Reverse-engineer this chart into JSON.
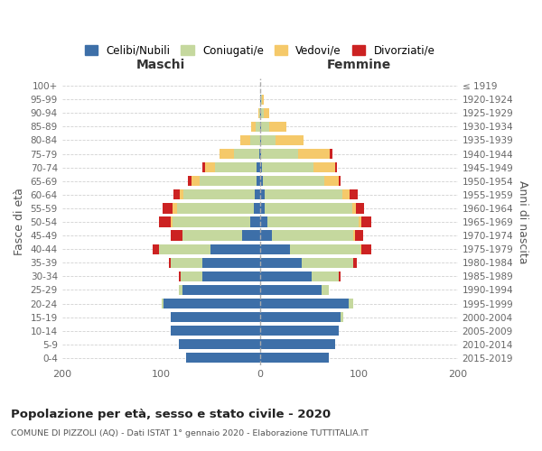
{
  "age_groups": [
    "0-4",
    "5-9",
    "10-14",
    "15-19",
    "20-24",
    "25-29",
    "30-34",
    "35-39",
    "40-44",
    "45-49",
    "50-54",
    "55-59",
    "60-64",
    "65-69",
    "70-74",
    "75-79",
    "80-84",
    "85-89",
    "90-94",
    "95-99",
    "100+"
  ],
  "birth_years": [
    "2015-2019",
    "2010-2014",
    "2005-2009",
    "2000-2004",
    "1995-1999",
    "1990-1994",
    "1985-1989",
    "1980-1984",
    "1975-1979",
    "1970-1974",
    "1965-1969",
    "1960-1964",
    "1955-1959",
    "1950-1954",
    "1945-1949",
    "1940-1944",
    "1935-1939",
    "1930-1934",
    "1925-1929",
    "1920-1924",
    "≤ 1919"
  ],
  "colors": {
    "celibi": "#3d6fa8",
    "coniugati": "#c5d89e",
    "vedovi": "#f5c96a",
    "divorziati": "#cc2222"
  },
  "maschi": {
    "celibi": [
      75,
      82,
      90,
      90,
      97,
      78,
      58,
      58,
      50,
      18,
      10,
      6,
      5,
      3,
      3,
      1,
      0,
      0,
      0,
      0,
      0
    ],
    "coniugati": [
      0,
      0,
      0,
      0,
      2,
      4,
      22,
      32,
      52,
      60,
      78,
      78,
      72,
      58,
      42,
      25,
      10,
      4,
      1,
      0,
      0
    ],
    "vedovi": [
      0,
      0,
      0,
      0,
      0,
      0,
      0,
      0,
      0,
      0,
      2,
      4,
      4,
      8,
      10,
      15,
      10,
      5,
      1,
      0,
      0
    ],
    "divorziati": [
      0,
      0,
      0,
      0,
      0,
      0,
      2,
      2,
      6,
      12,
      12,
      10,
      6,
      4,
      3,
      0,
      0,
      0,
      0,
      0,
      0
    ]
  },
  "femmine": {
    "celibi": [
      70,
      76,
      80,
      82,
      90,
      62,
      52,
      42,
      30,
      12,
      8,
      5,
      5,
      3,
      2,
      1,
      1,
      1,
      1,
      1,
      0
    ],
    "coniugati": [
      0,
      0,
      0,
      2,
      4,
      8,
      28,
      52,
      72,
      82,
      92,
      88,
      78,
      62,
      52,
      38,
      15,
      8,
      3,
      1,
      0
    ],
    "vedovi": [
      0,
      0,
      0,
      0,
      0,
      0,
      0,
      0,
      1,
      2,
      3,
      4,
      8,
      15,
      22,
      32,
      28,
      18,
      5,
      2,
      0
    ],
    "divorziati": [
      0,
      0,
      0,
      0,
      0,
      0,
      2,
      4,
      10,
      8,
      10,
      8,
      8,
      2,
      2,
      2,
      0,
      0,
      0,
      0,
      0
    ]
  },
  "xlim": 200,
  "title": "Popolazione per età, sesso e stato civile - 2020",
  "subtitle": "COMUNE DI PIZZOLI (AQ) - Dati ISTAT 1° gennaio 2020 - Elaborazione TUTTITALIA.IT",
  "ylabel_left": "Fasce di età",
  "ylabel_right": "Anni di nascita",
  "xlabel_left": "Maschi",
  "xlabel_right": "Femmine",
  "legend_labels": [
    "Celibi/Nubili",
    "Coniugati/e",
    "Vedovi/e",
    "Divorziati/e"
  ],
  "background_color": "#ffffff",
  "bar_height": 0.75
}
